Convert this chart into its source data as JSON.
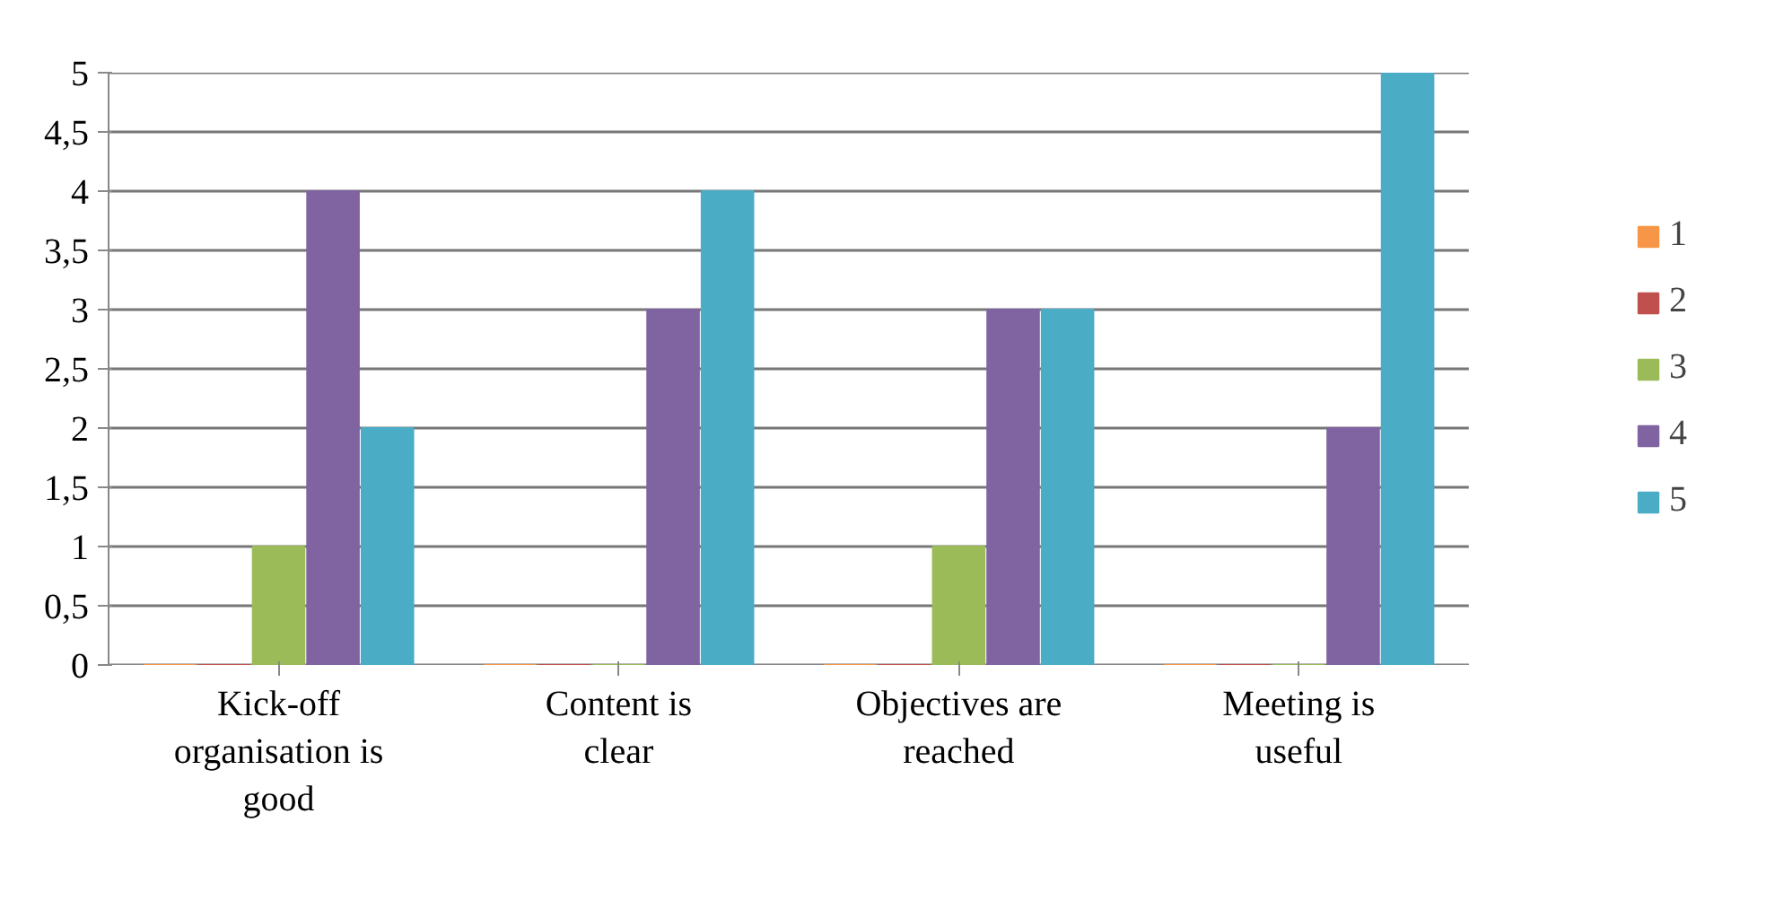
{
  "chart_data": {
    "type": "bar",
    "categories": [
      "Kick-off organisation is good",
      "Content is clear",
      "Objectives are reached",
      "Meeting is useful"
    ],
    "series": [
      {
        "name": "1",
        "color": "#f79646",
        "values": [
          0,
          0,
          0,
          0
        ]
      },
      {
        "name": "2",
        "color": "#c0504d",
        "values": [
          0,
          0,
          0,
          0
        ]
      },
      {
        "name": "3",
        "color": "#9bbb59",
        "values": [
          1,
          0,
          1,
          0
        ]
      },
      {
        "name": "4",
        "color": "#8064a2",
        "values": [
          4,
          3,
          3,
          2
        ]
      },
      {
        "name": "5",
        "color": "#4bacc6",
        "values": [
          2,
          4,
          3,
          5
        ]
      }
    ],
    "ylim": [
      0,
      5
    ],
    "yticks": [
      0,
      {
        "value": 0.5,
        "label": "0,5"
      },
      1,
      {
        "value": 1.5,
        "label": "1,5"
      },
      2,
      {
        "value": 2.5,
        "label": "2,5"
      },
      3,
      {
        "value": 3.5,
        "label": "3,5"
      },
      4,
      {
        "value": 4.5,
        "label": "4,5"
      },
      5
    ],
    "grid": "y",
    "legend": "right"
  }
}
